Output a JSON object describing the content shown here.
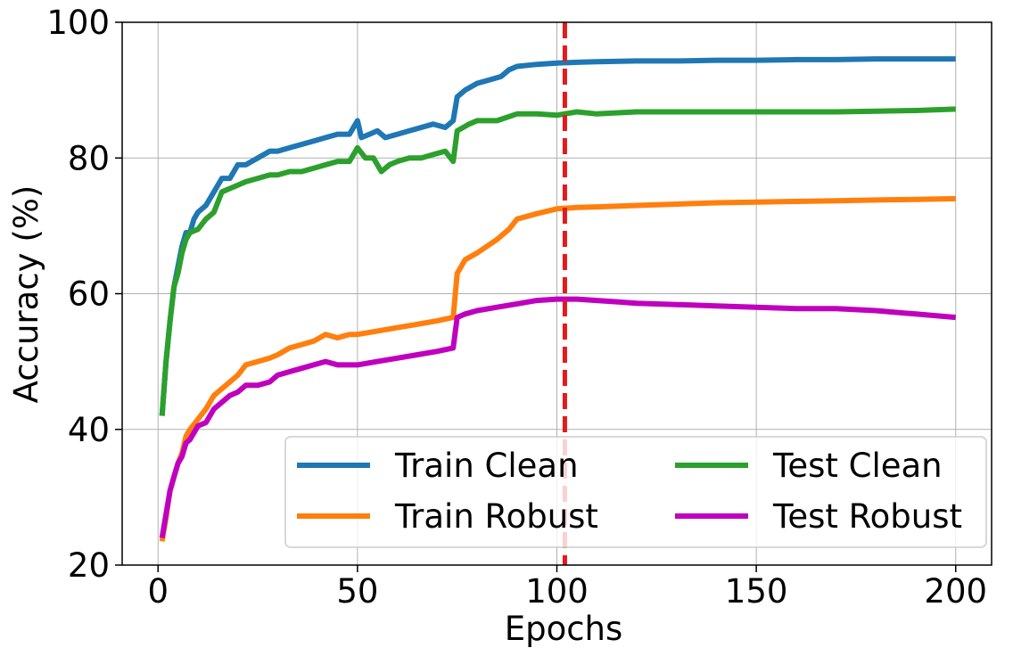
{
  "chart_data": {
    "type": "line",
    "xlabel": "Epochs",
    "ylabel": "Accuracy (%)",
    "xlim": [
      -9,
      209
    ],
    "ylim": [
      20,
      100
    ],
    "xticks": [
      0,
      50,
      100,
      150,
      200
    ],
    "yticks": [
      20,
      40,
      60,
      80,
      100
    ],
    "grid": true,
    "legend_position": "lower-right",
    "legend_columns": 2,
    "vline": {
      "x": 102,
      "color": "#e41a1c",
      "style": "dashed"
    },
    "series": [
      {
        "name": "Train Clean",
        "color": "#1f77b4",
        "points": [
          [
            1,
            42
          ],
          [
            2,
            50
          ],
          [
            3,
            56
          ],
          [
            4,
            61
          ],
          [
            5,
            64
          ],
          [
            6,
            67
          ],
          [
            7,
            69
          ],
          [
            8,
            69
          ],
          [
            9,
            71
          ],
          [
            10,
            72
          ],
          [
            12,
            73
          ],
          [
            14,
            75
          ],
          [
            16,
            77
          ],
          [
            18,
            77
          ],
          [
            20,
            79
          ],
          [
            22,
            79
          ],
          [
            25,
            80
          ],
          [
            28,
            81
          ],
          [
            30,
            81
          ],
          [
            33,
            81.5
          ],
          [
            36,
            82
          ],
          [
            39,
            82.5
          ],
          [
            42,
            83
          ],
          [
            45,
            83.5
          ],
          [
            48,
            83.5
          ],
          [
            50,
            85.5
          ],
          [
            51,
            83
          ],
          [
            53,
            83.5
          ],
          [
            55,
            84
          ],
          [
            57,
            83
          ],
          [
            60,
            83.5
          ],
          [
            63,
            84
          ],
          [
            66,
            84.5
          ],
          [
            69,
            85
          ],
          [
            72,
            84.5
          ],
          [
            74,
            85.5
          ],
          [
            75,
            89
          ],
          [
            77,
            90
          ],
          [
            80,
            91
          ],
          [
            83,
            91.5
          ],
          [
            86,
            92
          ],
          [
            88,
            93
          ],
          [
            90,
            93.5
          ],
          [
            95,
            93.8
          ],
          [
            100,
            94
          ],
          [
            105,
            94.1
          ],
          [
            110,
            94.2
          ],
          [
            120,
            94.3
          ],
          [
            130,
            94.3
          ],
          [
            140,
            94.4
          ],
          [
            150,
            94.4
          ],
          [
            160,
            94.5
          ],
          [
            170,
            94.5
          ],
          [
            180,
            94.6
          ],
          [
            190,
            94.6
          ],
          [
            200,
            94.6
          ]
        ]
      },
      {
        "name": "Train Robust",
        "color": "#ff7f0e",
        "points": [
          [
            1,
            23.5
          ],
          [
            2,
            27
          ],
          [
            3,
            31
          ],
          [
            4,
            33
          ],
          [
            5,
            35
          ],
          [
            6,
            36.5
          ],
          [
            7,
            39
          ],
          [
            8,
            40
          ],
          [
            10,
            41.5
          ],
          [
            12,
            43
          ],
          [
            14,
            45
          ],
          [
            16,
            46
          ],
          [
            18,
            47
          ],
          [
            20,
            48
          ],
          [
            22,
            49.5
          ],
          [
            25,
            50
          ],
          [
            28,
            50.5
          ],
          [
            30,
            51
          ],
          [
            33,
            52
          ],
          [
            36,
            52.5
          ],
          [
            39,
            53
          ],
          [
            42,
            54
          ],
          [
            45,
            53.5
          ],
          [
            48,
            54
          ],
          [
            50,
            54
          ],
          [
            55,
            54.5
          ],
          [
            60,
            55
          ],
          [
            65,
            55.5
          ],
          [
            70,
            56
          ],
          [
            74,
            56.5
          ],
          [
            75,
            63
          ],
          [
            77,
            65
          ],
          [
            80,
            66
          ],
          [
            85,
            68
          ],
          [
            88,
            69.5
          ],
          [
            90,
            71
          ],
          [
            95,
            71.8
          ],
          [
            100,
            72.5
          ],
          [
            105,
            72.7
          ],
          [
            110,
            72.8
          ],
          [
            120,
            73
          ],
          [
            130,
            73.2
          ],
          [
            140,
            73.4
          ],
          [
            150,
            73.5
          ],
          [
            160,
            73.6
          ],
          [
            170,
            73.7
          ],
          [
            180,
            73.8
          ],
          [
            190,
            73.9
          ],
          [
            200,
            74
          ]
        ]
      },
      {
        "name": "Test Clean",
        "color": "#2ca02c",
        "points": [
          [
            1,
            42
          ],
          [
            2,
            50
          ],
          [
            3,
            56
          ],
          [
            4,
            61
          ],
          [
            5,
            63
          ],
          [
            6,
            66
          ],
          [
            7,
            68
          ],
          [
            8,
            69
          ],
          [
            10,
            69.5
          ],
          [
            12,
            71
          ],
          [
            14,
            72
          ],
          [
            16,
            75
          ],
          [
            18,
            75.5
          ],
          [
            20,
            76
          ],
          [
            22,
            76.5
          ],
          [
            25,
            77
          ],
          [
            28,
            77.5
          ],
          [
            30,
            77.5
          ],
          [
            33,
            78
          ],
          [
            36,
            78
          ],
          [
            39,
            78.5
          ],
          [
            42,
            79
          ],
          [
            45,
            79.5
          ],
          [
            48,
            79.5
          ],
          [
            50,
            81.5
          ],
          [
            52,
            80
          ],
          [
            54,
            80
          ],
          [
            56,
            78
          ],
          [
            58,
            79
          ],
          [
            60,
            79.5
          ],
          [
            63,
            80
          ],
          [
            66,
            80
          ],
          [
            69,
            80.5
          ],
          [
            72,
            81
          ],
          [
            74,
            79.5
          ],
          [
            75,
            84
          ],
          [
            78,
            85
          ],
          [
            80,
            85.5
          ],
          [
            85,
            85.5
          ],
          [
            90,
            86.5
          ],
          [
            95,
            86.5
          ],
          [
            100,
            86.3
          ],
          [
            105,
            86.8
          ],
          [
            110,
            86.5
          ],
          [
            120,
            86.8
          ],
          [
            130,
            86.8
          ],
          [
            140,
            86.8
          ],
          [
            150,
            86.8
          ],
          [
            160,
            86.8
          ],
          [
            170,
            86.8
          ],
          [
            180,
            86.9
          ],
          [
            190,
            87
          ],
          [
            200,
            87.2
          ]
        ]
      },
      {
        "name": "Test Robust",
        "color": "#bf00bf",
        "points": [
          [
            1,
            24
          ],
          [
            2,
            27.5
          ],
          [
            3,
            31
          ],
          [
            4,
            33
          ],
          [
            5,
            35
          ],
          [
            6,
            36
          ],
          [
            7,
            38
          ],
          [
            8,
            38.5
          ],
          [
            10,
            40.5
          ],
          [
            12,
            41
          ],
          [
            14,
            43
          ],
          [
            16,
            44
          ],
          [
            18,
            45
          ],
          [
            20,
            45.5
          ],
          [
            22,
            46.5
          ],
          [
            25,
            46.5
          ],
          [
            28,
            47
          ],
          [
            30,
            48
          ],
          [
            33,
            48.5
          ],
          [
            36,
            49
          ],
          [
            39,
            49.5
          ],
          [
            42,
            50
          ],
          [
            45,
            49.5
          ],
          [
            48,
            49.5
          ],
          [
            50,
            49.5
          ],
          [
            55,
            50
          ],
          [
            60,
            50.5
          ],
          [
            65,
            51
          ],
          [
            70,
            51.5
          ],
          [
            74,
            52
          ],
          [
            75,
            56.5
          ],
          [
            77,
            57
          ],
          [
            80,
            57.5
          ],
          [
            85,
            58
          ],
          [
            90,
            58.5
          ],
          [
            95,
            59
          ],
          [
            100,
            59.2
          ],
          [
            105,
            59.2
          ],
          [
            110,
            59
          ],
          [
            115,
            58.8
          ],
          [
            120,
            58.6
          ],
          [
            130,
            58.4
          ],
          [
            140,
            58.2
          ],
          [
            150,
            58
          ],
          [
            160,
            57.8
          ],
          [
            170,
            57.8
          ],
          [
            180,
            57.5
          ],
          [
            190,
            57
          ],
          [
            200,
            56.5
          ]
        ]
      }
    ]
  }
}
